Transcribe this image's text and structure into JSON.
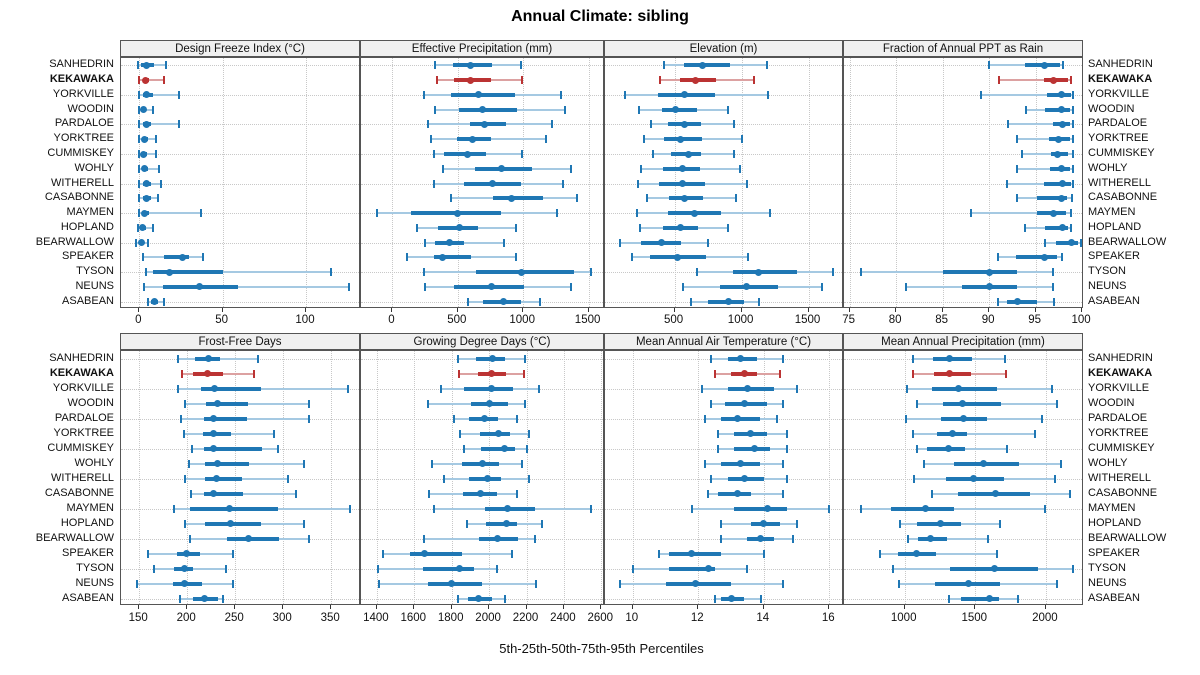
{
  "title": "Annual Climate: sibling",
  "footer_label": "5th-25th-50th-75th-95th Percentiles",
  "colors": {
    "series": "#1f77b4",
    "series_light": "#a5c9e2",
    "highlight": "#bb3333",
    "highlight_light": "#dca1a1",
    "grid": "#c8c8c8",
    "header_bg": "#f0f0f0",
    "panel_border": "#555555"
  },
  "chart_data": {
    "type": "dotplot-percentiles",
    "percentile_levels": [
      5,
      25,
      50,
      75,
      95
    ],
    "stations": [
      "SANHEDRIN",
      "KEKAWAKA",
      "YORKVILLE",
      "WOODIN",
      "PARDALOE",
      "YORKTREE",
      "CUMMISKEY",
      "WOHLY",
      "WITHERELL",
      "CASABONNE",
      "MAYMEN",
      "HOPLAND",
      "BEARWALLOW",
      "SPEAKER",
      "TYSON",
      "NEUNS",
      "ASABEAN"
    ],
    "highlight_station": "KEKAWAKA",
    "panels": [
      {
        "title": "Design Freeze Index (°C)",
        "xlim": [
          -11,
          133
        ],
        "ticks": [
          0,
          50,
          100
        ],
        "tick_labels": [
          "0",
          "50",
          "100"
        ],
        "values": [
          [
            -1,
            1,
            4,
            9,
            16
          ],
          [
            0,
            2,
            3.5,
            6,
            15
          ],
          [
            0,
            2,
            4.5,
            8,
            24
          ],
          [
            0,
            1,
            2.5,
            4,
            8
          ],
          [
            0,
            2,
            4,
            7,
            24
          ],
          [
            0,
            1.5,
            3,
            5,
            10
          ],
          [
            0,
            1.5,
            2.5,
            4.5,
            10
          ],
          [
            0,
            1.5,
            3,
            5,
            12
          ],
          [
            0,
            2,
            4,
            7,
            13
          ],
          [
            0,
            2,
            4,
            7,
            11
          ],
          [
            0,
            2,
            3,
            6,
            37
          ],
          [
            -1,
            1,
            2,
            4,
            8
          ],
          [
            -2,
            0,
            1,
            2,
            5
          ],
          [
            2,
            15,
            26,
            30,
            38
          ],
          [
            4,
            8,
            18,
            50,
            115
          ],
          [
            3,
            14,
            36,
            59,
            126
          ],
          [
            5,
            7,
            9,
            11,
            15
          ]
        ]
      },
      {
        "title": "Effective Precipitation (mm)",
        "xlim": [
          -240,
          1625
        ],
        "ticks": [
          0,
          500,
          1000,
          1500
        ],
        "tick_labels": [
          "0",
          "500",
          "1000",
          "1500"
        ],
        "values": [
          [
            325,
            460,
            600,
            765,
            980
          ],
          [
            340,
            467,
            600,
            753,
            988
          ],
          [
            240,
            450,
            660,
            940,
            1290
          ],
          [
            325,
            510,
            685,
            955,
            1320
          ],
          [
            270,
            590,
            700,
            870,
            1220
          ],
          [
            295,
            490,
            615,
            755,
            1175
          ],
          [
            315,
            395,
            575,
            715,
            990
          ],
          [
            385,
            630,
            830,
            1070,
            1365
          ],
          [
            315,
            550,
            765,
            980,
            1300
          ],
          [
            445,
            765,
            910,
            1150,
            1410
          ],
          [
            -120,
            140,
            500,
            830,
            1260
          ],
          [
            190,
            350,
            510,
            655,
            945
          ],
          [
            245,
            325,
            435,
            550,
            855
          ],
          [
            115,
            315,
            385,
            600,
            945
          ],
          [
            240,
            640,
            990,
            1385,
            1520
          ],
          [
            245,
            470,
            760,
            1010,
            1365
          ],
          [
            575,
            690,
            850,
            980,
            1125
          ]
        ]
      },
      {
        "title": "Elevation (m)",
        "xlim": [
          -20,
          1765
        ],
        "ticks": [
          500,
          1000,
          1500
        ],
        "tick_labels": [
          "500",
          "1000",
          "1500"
        ],
        "values": [
          [
            420,
            570,
            710,
            910,
            1190
          ],
          [
            390,
            540,
            655,
            810,
            1090
          ],
          [
            130,
            375,
            570,
            800,
            1200
          ],
          [
            235,
            405,
            505,
            670,
            900
          ],
          [
            320,
            450,
            575,
            700,
            945
          ],
          [
            270,
            420,
            545,
            705,
            1005
          ],
          [
            335,
            470,
            600,
            700,
            945
          ],
          [
            245,
            415,
            555,
            690,
            990
          ],
          [
            225,
            385,
            560,
            730,
            1040
          ],
          [
            295,
            455,
            575,
            710,
            960
          ],
          [
            220,
            450,
            645,
            845,
            1210
          ],
          [
            240,
            415,
            545,
            675,
            895
          ],
          [
            90,
            245,
            400,
            545,
            750
          ],
          [
            185,
            315,
            520,
            735,
            1045
          ],
          [
            670,
            935,
            1125,
            1415,
            1680
          ],
          [
            560,
            840,
            1040,
            1270,
            1600
          ],
          [
            620,
            750,
            900,
            1020,
            1130
          ]
        ]
      },
      {
        "title": "Fraction of Annual PPT as Rain",
        "xlim": [
          74.4,
          100.2
        ],
        "ticks": [
          75,
          80,
          85,
          90,
          95,
          100
        ],
        "tick_labels": [
          "75",
          "80",
          "85",
          "90",
          "95",
          "100"
        ],
        "values": [
          [
            90,
            93.9,
            95.9,
            97.6,
            97.9
          ],
          [
            91.1,
            95.9,
            96.9,
            98.5,
            98.8
          ],
          [
            89.1,
            96.2,
            97.8,
            98.8,
            99
          ],
          [
            94,
            96,
            97.8,
            98.7,
            99
          ],
          [
            92,
            96.9,
            97.9,
            98.7,
            99
          ],
          [
            93,
            96.4,
            97.5,
            98.7,
            99
          ],
          [
            93.5,
            96.6,
            97.3,
            98.5,
            99
          ],
          [
            93,
            96.5,
            97.8,
            98.7,
            99
          ],
          [
            91.9,
            95.9,
            97.9,
            98.8,
            99
          ],
          [
            93,
            95.1,
            97.8,
            98.4,
            98.9
          ],
          [
            88.1,
            95.1,
            96.9,
            98.3,
            98.8
          ],
          [
            93.9,
            96,
            97.9,
            98.5,
            98.8
          ],
          [
            96,
            97.2,
            98.8,
            99.6,
            99.9
          ],
          [
            90.9,
            92.9,
            95.9,
            97.3,
            97.8
          ],
          [
            76.2,
            85,
            90,
            93,
            96.9
          ],
          [
            81.1,
            87.1,
            90,
            93,
            96.9
          ],
          [
            90.9,
            91.9,
            93,
            95.1,
            97
          ]
        ]
      },
      {
        "title": "Frost-Free Days",
        "xlim": [
          131,
          381
        ],
        "ticks": [
          150,
          200,
          250,
          300,
          350
        ],
        "tick_labels": [
          "150",
          "200",
          "250",
          "300",
          "350"
        ],
        "values": [
          [
            190,
            208,
            222,
            234,
            274
          ],
          [
            194,
            206,
            221,
            237,
            270
          ],
          [
            190,
            214,
            228,
            277,
            367
          ],
          [
            198,
            220,
            231,
            263,
            327
          ],
          [
            193,
            217,
            227,
            262,
            327
          ],
          [
            197,
            216,
            227,
            246,
            290
          ],
          [
            205,
            217,
            227,
            278,
            294
          ],
          [
            202,
            218,
            231,
            264,
            322
          ],
          [
            198,
            218,
            230,
            257,
            305
          ],
          [
            204,
            217,
            227,
            258,
            313
          ],
          [
            186,
            203,
            244,
            295,
            369
          ],
          [
            198,
            218,
            245,
            277,
            322
          ],
          [
            203,
            241,
            264,
            296,
            327
          ],
          [
            159,
            189,
            199,
            213,
            248
          ],
          [
            165,
            186,
            197,
            206,
            240
          ],
          [
            148,
            185,
            197,
            215,
            248
          ],
          [
            192,
            206,
            218,
            232,
            237
          ]
        ]
      },
      {
        "title": "Growing Degree Days (°C)",
        "xlim": [
          1315,
          2620
        ],
        "ticks": [
          1400,
          1600,
          1800,
          2000,
          2200,
          2400,
          2600
        ],
        "tick_labels": [
          "1400",
          "1600",
          "1800",
          "2000",
          "2200",
          "2400",
          "2600"
        ],
        "values": [
          [
            1833,
            1930,
            2016,
            2086,
            2190
          ],
          [
            1838,
            1940,
            2015,
            2090,
            2184
          ],
          [
            1740,
            1868,
            2015,
            2127,
            2267
          ],
          [
            1675,
            1904,
            2000,
            2100,
            2193
          ],
          [
            1810,
            1890,
            1975,
            2047,
            2150
          ],
          [
            1845,
            1950,
            2050,
            2113,
            2213
          ],
          [
            1868,
            1954,
            2080,
            2140,
            2200
          ],
          [
            1695,
            1855,
            1963,
            2050,
            2177
          ],
          [
            1760,
            1890,
            1990,
            2065,
            2213
          ],
          [
            1680,
            1860,
            1954,
            2043,
            2150
          ],
          [
            1704,
            1980,
            2097,
            2247,
            2543
          ],
          [
            1880,
            1984,
            2095,
            2150,
            2284
          ],
          [
            1654,
            1948,
            2043,
            2157,
            2243
          ],
          [
            1430,
            1577,
            1657,
            1854,
            2122
          ],
          [
            1407,
            1645,
            1841,
            1922,
            2043
          ],
          [
            1412,
            1672,
            1800,
            1961,
            2252
          ],
          [
            1833,
            1889,
            1943,
            2015,
            2086
          ]
        ]
      },
      {
        "title": "Mean Annual Air Temperature (°C)",
        "xlim": [
          9.15,
          16.45
        ],
        "ticks": [
          10,
          12,
          14,
          16
        ],
        "tick_labels": [
          "10",
          "12",
          "14",
          "16"
        ],
        "values": [
          [
            12.4,
            12.9,
            13.3,
            13.8,
            14.6
          ],
          [
            12.5,
            13,
            13.4,
            13.8,
            14.5
          ],
          [
            12.1,
            12.9,
            13.5,
            14.3,
            15
          ],
          [
            12.4,
            12.8,
            13.4,
            14.1,
            14.6
          ],
          [
            12.2,
            12.7,
            13.2,
            13.9,
            14.4
          ],
          [
            12.6,
            13.1,
            13.6,
            14.1,
            14.7
          ],
          [
            12.6,
            13.1,
            13.7,
            14.2,
            14.7
          ],
          [
            12.2,
            12.7,
            13.3,
            13.9,
            14.6
          ],
          [
            12.4,
            12.9,
            13.4,
            14,
            14.7
          ],
          [
            12.3,
            12.6,
            13.2,
            13.6,
            14.6
          ],
          [
            11.8,
            13.1,
            14.1,
            14.7,
            16
          ],
          [
            12.7,
            13.6,
            14,
            14.5,
            15
          ],
          [
            12.7,
            13.5,
            13.9,
            14.3,
            14.9
          ],
          [
            10.8,
            11.1,
            11.8,
            12.7,
            14
          ],
          [
            10,
            11.1,
            12.3,
            12.5,
            13.5
          ],
          [
            9.6,
            11,
            11.9,
            13,
            14.6
          ],
          [
            12.5,
            12.7,
            13,
            13.4,
            13.9
          ]
        ]
      },
      {
        "title": "Mean Annual Precipitation (mm)",
        "xlim": [
          570,
          2270
        ],
        "ticks": [
          1000,
          1500,
          2000
        ],
        "tick_labels": [
          "1000",
          "1500",
          "2000"
        ],
        "values": [
          [
            1060,
            1200,
            1320,
            1480,
            1710
          ],
          [
            1060,
            1210,
            1320,
            1470,
            1720
          ],
          [
            1015,
            1190,
            1380,
            1655,
            2040
          ],
          [
            1085,
            1270,
            1410,
            1685,
            2075
          ],
          [
            1007,
            1260,
            1415,
            1585,
            1970
          ],
          [
            1060,
            1230,
            1340,
            1440,
            1920
          ],
          [
            1085,
            1160,
            1310,
            1425,
            1725
          ],
          [
            1135,
            1350,
            1555,
            1810,
            2105
          ],
          [
            1065,
            1290,
            1490,
            1705,
            2065
          ],
          [
            1190,
            1375,
            1640,
            1890,
            2170
          ],
          [
            690,
            900,
            1150,
            1350,
            1995
          ],
          [
            965,
            1085,
            1250,
            1400,
            1675
          ],
          [
            1020,
            1095,
            1180,
            1300,
            1590
          ],
          [
            825,
            955,
            1085,
            1225,
            1655
          ],
          [
            915,
            1320,
            1633,
            1945,
            2195
          ],
          [
            960,
            1215,
            1455,
            1675,
            2080
          ],
          [
            1310,
            1395,
            1600,
            1670,
            1800
          ]
        ]
      }
    ]
  }
}
